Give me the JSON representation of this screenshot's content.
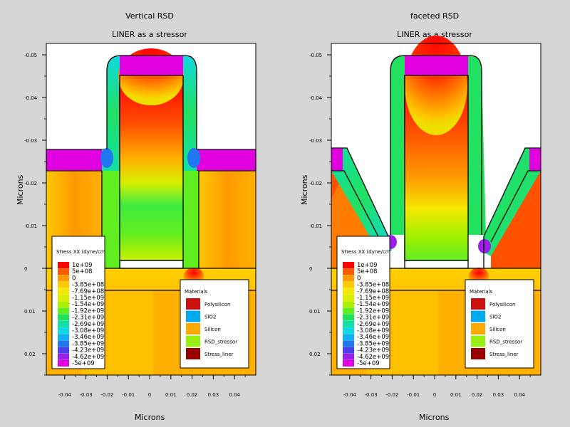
{
  "chart_data": [
    {
      "type": "heatmap",
      "title": "Vertical RSD",
      "subtitle": "LINER as a stressor",
      "xlabel": "Microns",
      "ylabel": "Microns",
      "xlim": [
        -0.042,
        0.044
      ],
      "ylim": [
        -0.055,
        0.03
      ],
      "x_ticks": [
        "-0.04",
        "-0.03",
        "-0.02",
        "-0.01",
        "0",
        "0.01",
        "0.02",
        "0.03",
        "0.04"
      ],
      "y_ticks": [
        "-0.05",
        "-0.04",
        "-0.03",
        "-0.02",
        "-0.01",
        "0",
        "0.01",
        "0.02"
      ],
      "colorbar": {
        "title": "Stress XX (dyne/cm",
        "labels": [
          "1e+09",
          "5e+08",
          "0",
          "-3.85e+08",
          "-7.69e+08",
          "-1.15e+09",
          "-1.54e+09",
          "-1.92e+09",
          "-2.31e+09",
          "-2.69e+09",
          "-3.08e+09",
          "-3.46e+09",
          "-3.85e+09",
          "-4.23e+09",
          "-4.62e+09",
          "-5e+09"
        ],
        "colors": [
          "#ff0000",
          "#ff5a00",
          "#ff9a00",
          "#ffc800",
          "#f4e800",
          "#d8f000",
          "#a8f000",
          "#60ee20",
          "#22e060",
          "#10e0a8",
          "#10d8e0",
          "#10b0f0",
          "#2078f0",
          "#4a40e8",
          "#9a20e8",
          "#e000e0"
        ]
      },
      "materials_legend": {
        "title": "Materials",
        "items": [
          {
            "label": "Polysilicon",
            "color": "#cc1111"
          },
          {
            "label": "SiO2",
            "color": "#00aaee"
          },
          {
            "label": "Silicon",
            "color": "#ffaa00"
          },
          {
            "label": "RSD_stressor",
            "color": "#99ee11"
          },
          {
            "label": "Stress_liner",
            "color": "#990000"
          }
        ]
      }
    },
    {
      "type": "heatmap",
      "title": "faceted RSD",
      "subtitle": "LINER as a stressor",
      "xlabel": "Microns",
      "ylabel": "Microns",
      "xlim": [
        -0.042,
        0.044
      ],
      "ylim": [
        -0.055,
        0.03
      ],
      "x_ticks": [
        "-0.04",
        "-0.03",
        "-0.02",
        "-0.01",
        "0",
        "0.01",
        "0.02",
        "0.03",
        "0.04"
      ],
      "y_ticks": [
        "-0.05",
        "-0.04",
        "-0.03",
        "-0.02",
        "-0.01",
        "0",
        "0.01",
        "0.02"
      ],
      "colorbar": {
        "title": "Stress XX (dyne/cm",
        "labels": [
          "1e+09",
          "5e+08",
          "0",
          "-3.85e+08",
          "-7.69e+08",
          "-1.15e+09",
          "-1.54e+09",
          "-1.92e+09",
          "-2.31e+09",
          "-2.69e+09",
          "-3.08e+09",
          "-3.46e+09",
          "-3.85e+09",
          "-4.23e+09",
          "-4.62e+09",
          "-5e+09"
        ],
        "colors": [
          "#ff0000",
          "#ff5a00",
          "#ff9a00",
          "#ffc800",
          "#f4e800",
          "#d8f000",
          "#a8f000",
          "#60ee20",
          "#22e060",
          "#10e0a8",
          "#10d8e0",
          "#10b0f0",
          "#2078f0",
          "#4a40e8",
          "#9a20e8",
          "#e000e0"
        ]
      },
      "materials_legend": {
        "title": "Materials",
        "items": [
          {
            "label": "Polysilicon",
            "color": "#cc1111"
          },
          {
            "label": "SiO2",
            "color": "#00aaee"
          },
          {
            "label": "Silicon",
            "color": "#ffaa00"
          },
          {
            "label": "RSD_stressor",
            "color": "#99ee11"
          },
          {
            "label": "Stress_liner",
            "color": "#990000"
          }
        ]
      }
    }
  ]
}
